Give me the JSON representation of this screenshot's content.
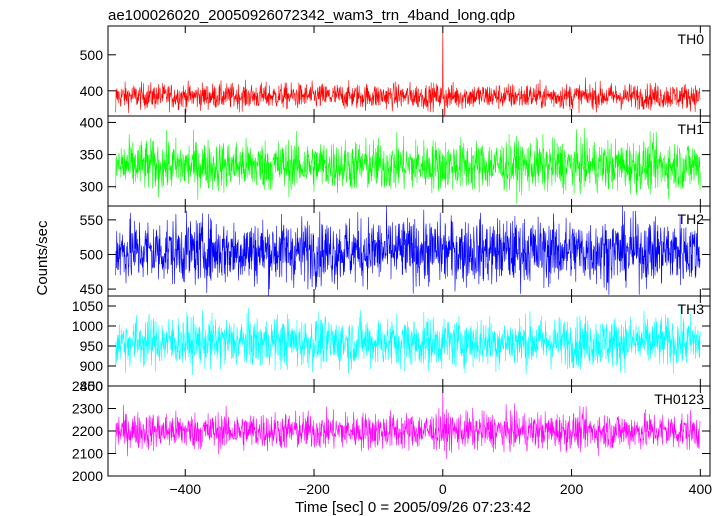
{
  "chart_data": {
    "type": "line",
    "title": "ae100026020_20050926072342_wam3_trn_4band_long.qdp",
    "xlabel": "Time [sec] 0 = 2005/09/26 07:23:42",
    "ylabel": "Counts/sec",
    "xlim": [
      -520,
      415
    ],
    "xticks": [
      -400,
      -200,
      0,
      200,
      400
    ],
    "x_tick_labels": [
      "−400",
      "−200",
      "0",
      "200",
      "400"
    ],
    "x_start": -508,
    "x_end": 400,
    "panels": [
      {
        "name": "TH0",
        "color": "#ff0000",
        "ylim": [
          330,
          580
        ],
        "yticks": [
          400,
          500
        ],
        "baseline": 385,
        "noise": 18,
        "features": [
          {
            "x": -508,
            "y": 340
          },
          {
            "x": 0,
            "y": 578
          },
          {
            "x": 3,
            "y": 310
          }
        ]
      },
      {
        "name": "TH1",
        "color": "#00ff00",
        "ylim": [
          270,
          410
        ],
        "yticks": [
          300,
          350,
          400
        ],
        "baseline": 333,
        "noise": 20,
        "features": [
          {
            "x": -508,
            "y": 296
          }
        ]
      },
      {
        "name": "TH2",
        "color": "#0000ff",
        "ylim": [
          440,
          570
        ],
        "yticks": [
          450,
          500,
          550
        ],
        "baseline": 505,
        "noise": 24,
        "features": [
          {
            "x": -508,
            "y": 470
          }
        ]
      },
      {
        "name": "TH3",
        "color": "#00ffff",
        "ylim": [
          850,
          1075
        ],
        "yticks": [
          850,
          900,
          950,
          1000,
          1050
        ],
        "baseline": 960,
        "noise": 32,
        "features": [
          {
            "x": -508,
            "y": 900
          }
        ]
      },
      {
        "name": "TH0123",
        "color": "#ff00ff",
        "ylim": [
          2000,
          2400
        ],
        "yticks": [
          2000,
          2100,
          2200,
          2300,
          2400
        ],
        "baseline": 2200,
        "noise": 42,
        "features": [
          {
            "x": -508,
            "y": 2100
          },
          {
            "x": 0,
            "y": 2395
          },
          {
            "x": 3,
            "y": 2110
          }
        ]
      }
    ]
  }
}
